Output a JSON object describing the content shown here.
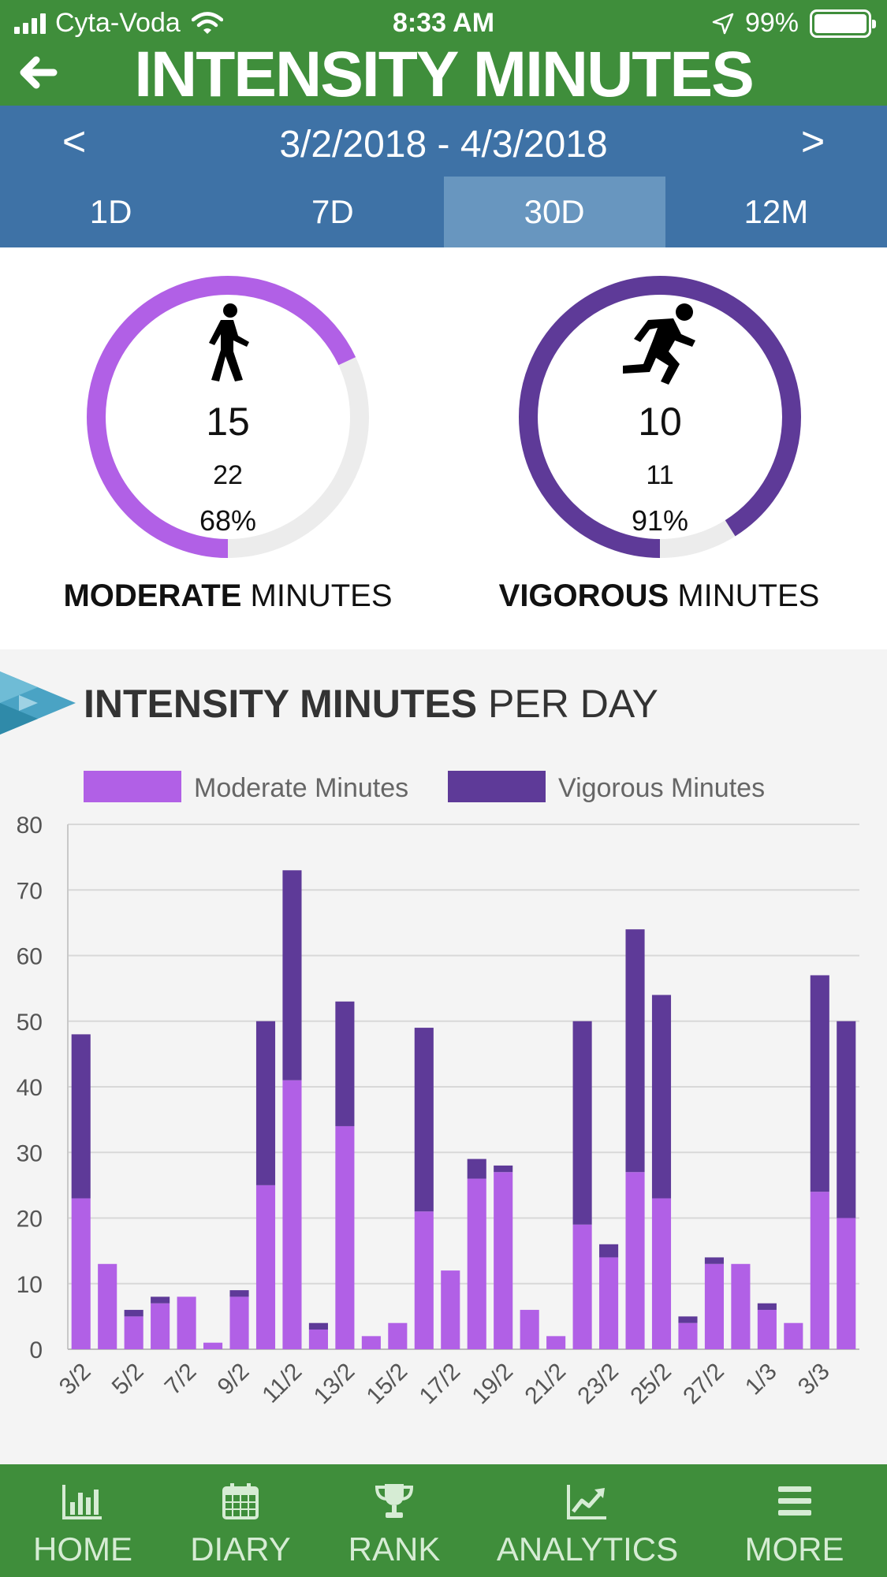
{
  "status_bar": {
    "carrier": "Cyta-Voda",
    "time": "8:33 AM",
    "battery": "99%"
  },
  "header": {
    "title": "INTENSITY MINUTES",
    "back_icon": "back-arrow-icon"
  },
  "date_nav": {
    "prev": "<",
    "range": "3/2/2018 - 4/3/2018",
    "next": ">"
  },
  "period_tabs": [
    {
      "label": "1D"
    },
    {
      "label": "7D"
    },
    {
      "label": "30D"
    },
    {
      "label": "12M"
    }
  ],
  "period_selected": "30D",
  "moderate": {
    "icon": "walking-person-icon",
    "value": "15",
    "goal": "22",
    "percent": "68%",
    "progress": 0.68,
    "caption_bold": "MODERATE",
    "caption_rest": " MINUTES",
    "color": "#b160e6"
  },
  "vigorous": {
    "icon": "running-person-icon",
    "value": "10",
    "goal": "11",
    "percent": "91%",
    "progress": 0.91,
    "caption_bold": "VIGOROUS",
    "caption_rest": " MINUTES",
    "color": "#5e3a98"
  },
  "chart_section": {
    "title_bold": "INTENSITY MINUTES",
    "title_rest": " PER DAY"
  },
  "chart_data": {
    "type": "bar",
    "stacked": true,
    "categories": [
      "3/2",
      "4/2",
      "5/2",
      "6/2",
      "7/2",
      "8/2",
      "9/2",
      "10/2",
      "11/2",
      "12/2",
      "13/2",
      "14/2",
      "15/2",
      "16/2",
      "17/2",
      "18/2",
      "19/2",
      "20/2",
      "21/2",
      "22/2",
      "23/2",
      "24/2",
      "25/2",
      "26/2",
      "27/2",
      "28/2",
      "1/3",
      "2/3",
      "3/3",
      "4/3"
    ],
    "tick_labels": [
      "3/2",
      "5/2",
      "7/2",
      "9/2",
      "11/2",
      "13/2",
      "15/2",
      "17/2",
      "19/2",
      "21/2",
      "23/2",
      "25/2",
      "27/2",
      "1/3",
      "3/3"
    ],
    "series": [
      {
        "name": "Moderate Minutes",
        "color": "#b160e6",
        "values": [
          23,
          13,
          5,
          7,
          8,
          1,
          8,
          25,
          41,
          3,
          34,
          2,
          4,
          21,
          12,
          26,
          27,
          6,
          2,
          19,
          14,
          27,
          23,
          4,
          13,
          13,
          6,
          4,
          24,
          20
        ]
      },
      {
        "name": "Vigorous Minutes",
        "color": "#5e3a98",
        "values": [
          25,
          0,
          1,
          1,
          0,
          0,
          1,
          25,
          32,
          1,
          19,
          0,
          0,
          28,
          0,
          3,
          1,
          0,
          0,
          31,
          2,
          37,
          31,
          1,
          1,
          0,
          1,
          0,
          33,
          30
        ]
      }
    ],
    "ylim": [
      0,
      80
    ],
    "yticks": [
      0,
      10,
      20,
      30,
      40,
      50,
      60,
      70,
      80
    ],
    "grid": true,
    "legend": "top"
  },
  "bottom_nav": [
    {
      "label": "HOME",
      "icon": "bar-chart-icon"
    },
    {
      "label": "DIARY",
      "icon": "calendar-icon"
    },
    {
      "label": "RANK",
      "icon": "trophy-icon"
    },
    {
      "label": "ANALYTICS",
      "icon": "trend-chart-icon"
    },
    {
      "label": "MORE",
      "icon": "menu-icon"
    }
  ]
}
